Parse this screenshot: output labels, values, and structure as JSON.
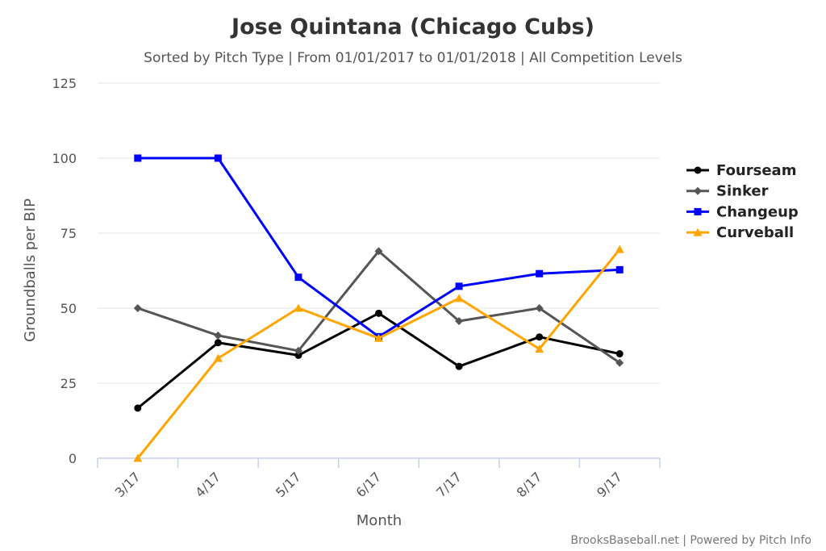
{
  "chart_data": {
    "type": "line",
    "title": "Jose Quintana (Chicago Cubs)",
    "subtitle": "Sorted by Pitch Type | From 01/01/2017 to 01/01/2018 | All Competition Levels",
    "xlabel": "Month",
    "ylabel": "Groundballs per BIP",
    "ylim": [
      0,
      125
    ],
    "yticks": [
      0,
      25,
      50,
      75,
      100,
      125
    ],
    "grid": true,
    "legend": "right",
    "categories": [
      "3/17",
      "4/17",
      "5/17",
      "6/17",
      "7/17",
      "8/17",
      "9/17"
    ],
    "series": [
      {
        "name": "Fourseam",
        "color": "#000000",
        "marker": "circle",
        "values": [
          16.7,
          38.5,
          34.3,
          48.3,
          30.6,
          40.4,
          34.8
        ]
      },
      {
        "name": "Sinker",
        "color": "#555555",
        "marker": "diamond",
        "values": [
          50.0,
          40.9,
          35.8,
          69.0,
          45.7,
          50.0,
          31.8
        ]
      },
      {
        "name": "Changeup",
        "color": "#0000ff",
        "marker": "square",
        "values": [
          100.0,
          100.0,
          60.3,
          40.5,
          57.3,
          61.5,
          62.8
        ]
      },
      {
        "name": "Curveball",
        "color": "#ffa500",
        "marker": "triangle",
        "values": [
          0.0,
          33.3,
          50.0,
          40.0,
          53.3,
          36.4,
          69.6
        ]
      }
    ]
  },
  "credits": "BrooksBaseball.net | Powered by Pitch Info"
}
